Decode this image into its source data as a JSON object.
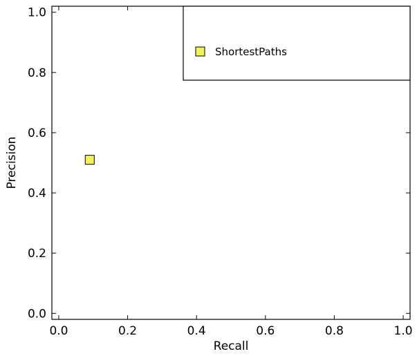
{
  "chart_data": {
    "type": "scatter",
    "title": "",
    "xlabel": "Recall",
    "ylabel": "Precision",
    "xlim": [
      -0.02,
      1.02
    ],
    "ylim": [
      -0.02,
      1.02
    ],
    "x_ticks": [
      0.0,
      0.2,
      0.4,
      0.6,
      0.8,
      1.0
    ],
    "x_tick_labels": [
      "0.0",
      "0.2",
      "0.4",
      "0.6",
      "0.8",
      "1.0"
    ],
    "y_ticks": [
      0.0,
      0.2,
      0.4,
      0.6,
      0.8,
      1.0
    ],
    "y_tick_labels": [
      "0.0",
      "0.2",
      "0.4",
      "0.6",
      "0.8",
      "1.0"
    ],
    "grid": false,
    "legend_position": "top-right",
    "series": [
      {
        "name": "ShortestPaths",
        "marker": "square",
        "color": "#f2f25a",
        "edge_color": "#000000",
        "points": [
          {
            "x": 0.09,
            "y": 0.51
          }
        ]
      }
    ]
  }
}
